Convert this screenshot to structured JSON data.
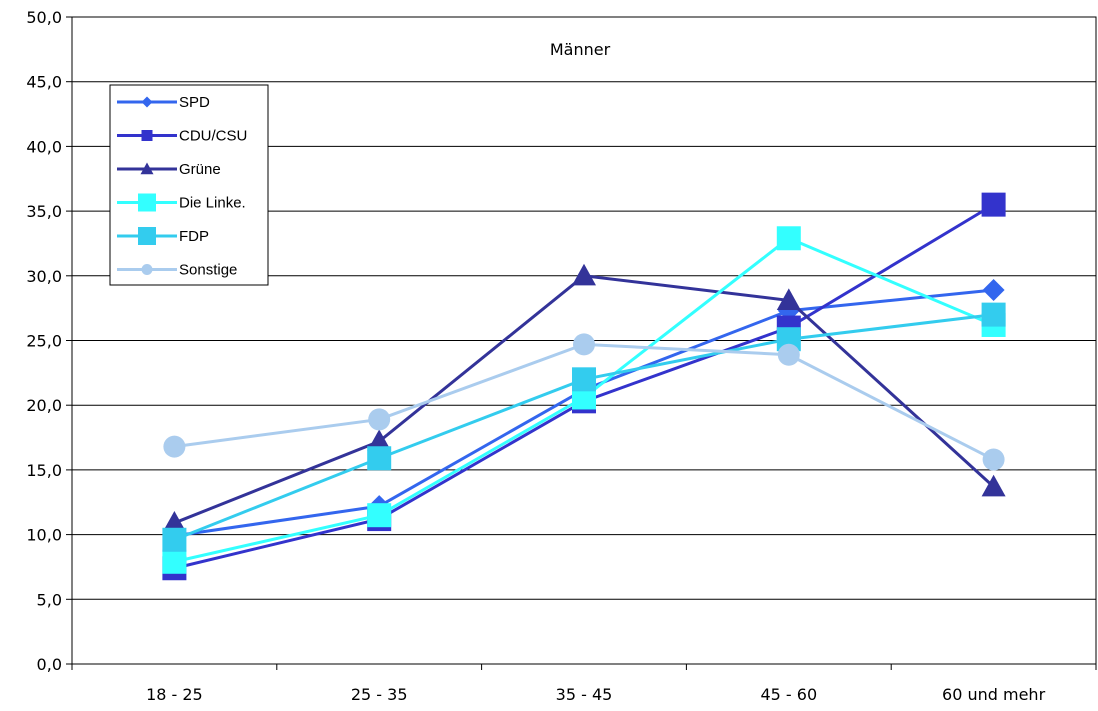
{
  "chart_data": {
    "type": "line",
    "title": "Männer",
    "xlabel": "",
    "ylabel": "",
    "ylim": [
      0,
      50
    ],
    "y_ticks": [
      "0,0",
      "5,0",
      "10,0",
      "15,0",
      "20,0",
      "25,0",
      "30,0",
      "35,0",
      "40,0",
      "45,0",
      "50,0"
    ],
    "grid": true,
    "legend_position": "top-left",
    "categories": [
      "18 - 25",
      "25 - 35",
      "35 - 45",
      "45 - 60",
      "60 und mehr"
    ],
    "series": [
      {
        "name": "SPD",
        "values": [
          9.9,
          12.2,
          21.2,
          27.3,
          28.9
        ],
        "color": "#3366ee",
        "marker": "diamond"
      },
      {
        "name": "CDU/CSU",
        "values": [
          7.4,
          11.2,
          20.3,
          26.0,
          35.5
        ],
        "color": "#3333cc",
        "marker": "square"
      },
      {
        "name": "Grüne",
        "values": [
          10.9,
          17.2,
          30.0,
          28.1,
          13.7
        ],
        "color": "#333399",
        "marker": "triangle"
      },
      {
        "name": "Die Linke.",
        "values": [
          7.9,
          11.5,
          20.6,
          32.9,
          26.2
        ],
        "color": "#33ffff",
        "marker": "square"
      },
      {
        "name": "FDP",
        "values": [
          9.6,
          15.9,
          22.0,
          25.1,
          27.0
        ],
        "color": "#33ccee",
        "marker": "square"
      },
      {
        "name": "Sonstige",
        "values": [
          16.8,
          18.9,
          24.7,
          23.9,
          15.8
        ],
        "color": "#aaccee",
        "marker": "circle"
      }
    ]
  }
}
